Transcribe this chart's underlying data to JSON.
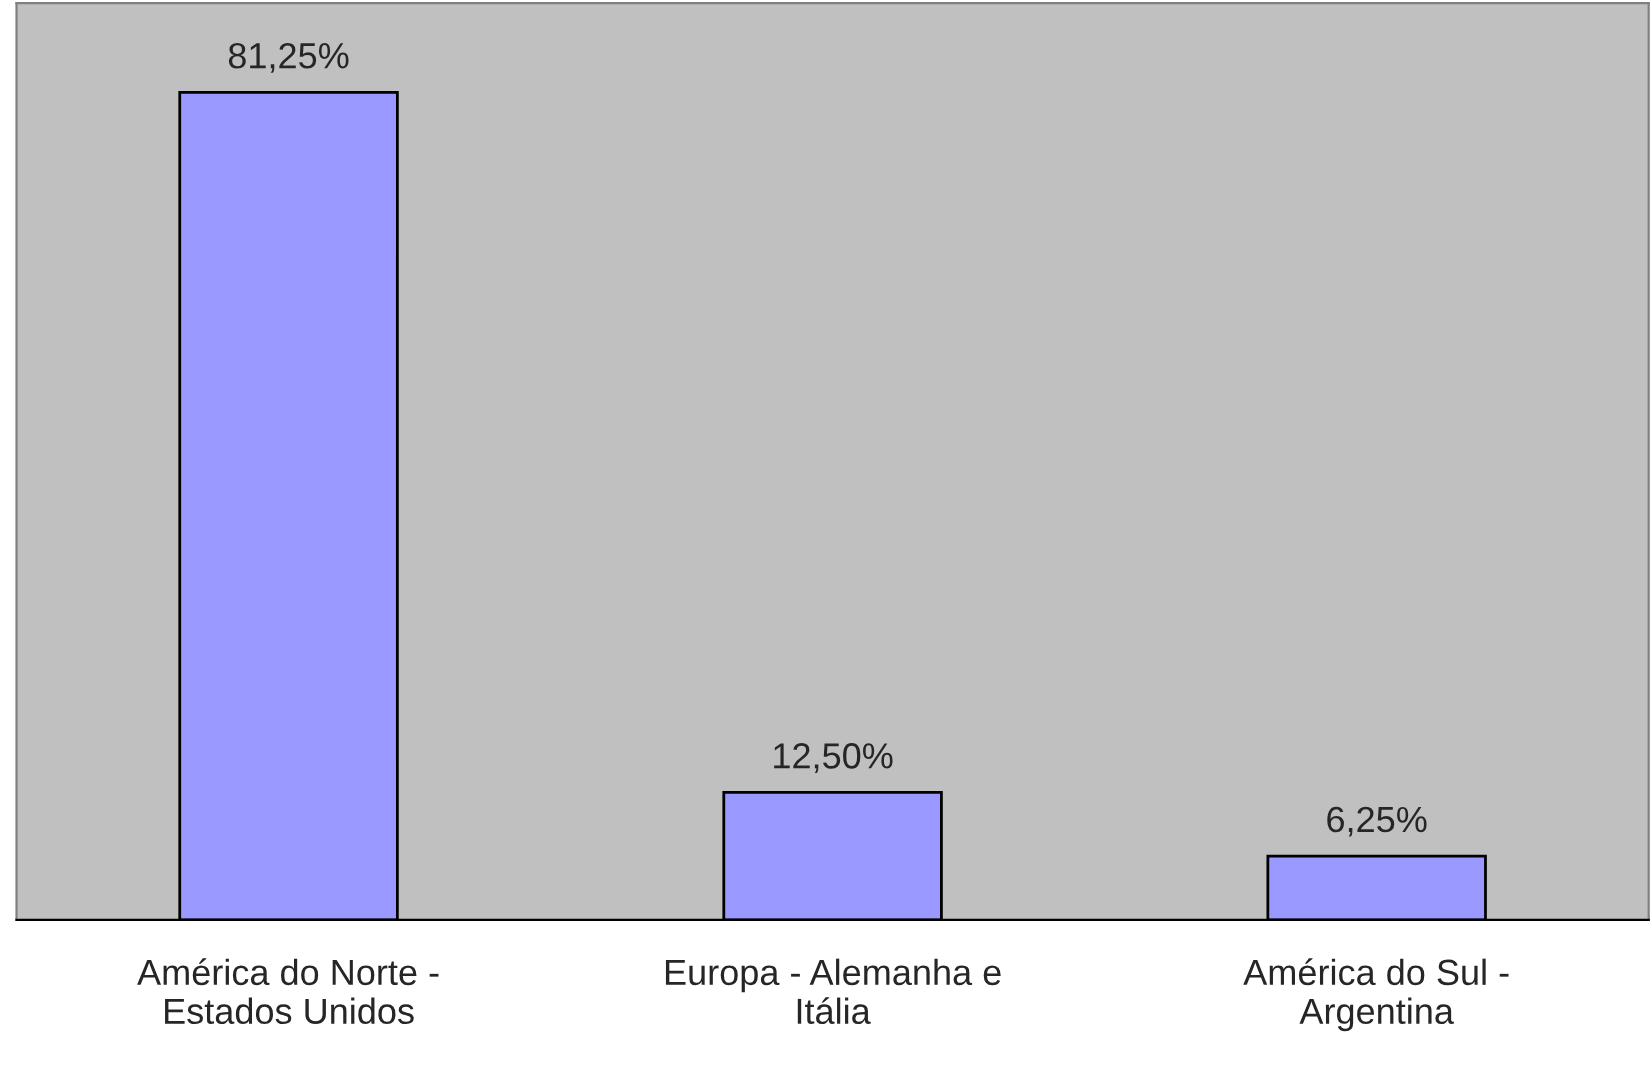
{
  "chart_data": {
    "type": "bar",
    "categories": [
      "América do Norte -\nEstados Unidos",
      "Europa - Alemanha e\nItália",
      "América do Sul -\nArgentina"
    ],
    "values": [
      81.25,
      12.5,
      6.25
    ],
    "value_labels": [
      "81,25%",
      "12,50%",
      "6,25%"
    ],
    "color": "#9999ff",
    "ylim": [
      0,
      90
    ],
    "grid": false,
    "legend": false
  }
}
